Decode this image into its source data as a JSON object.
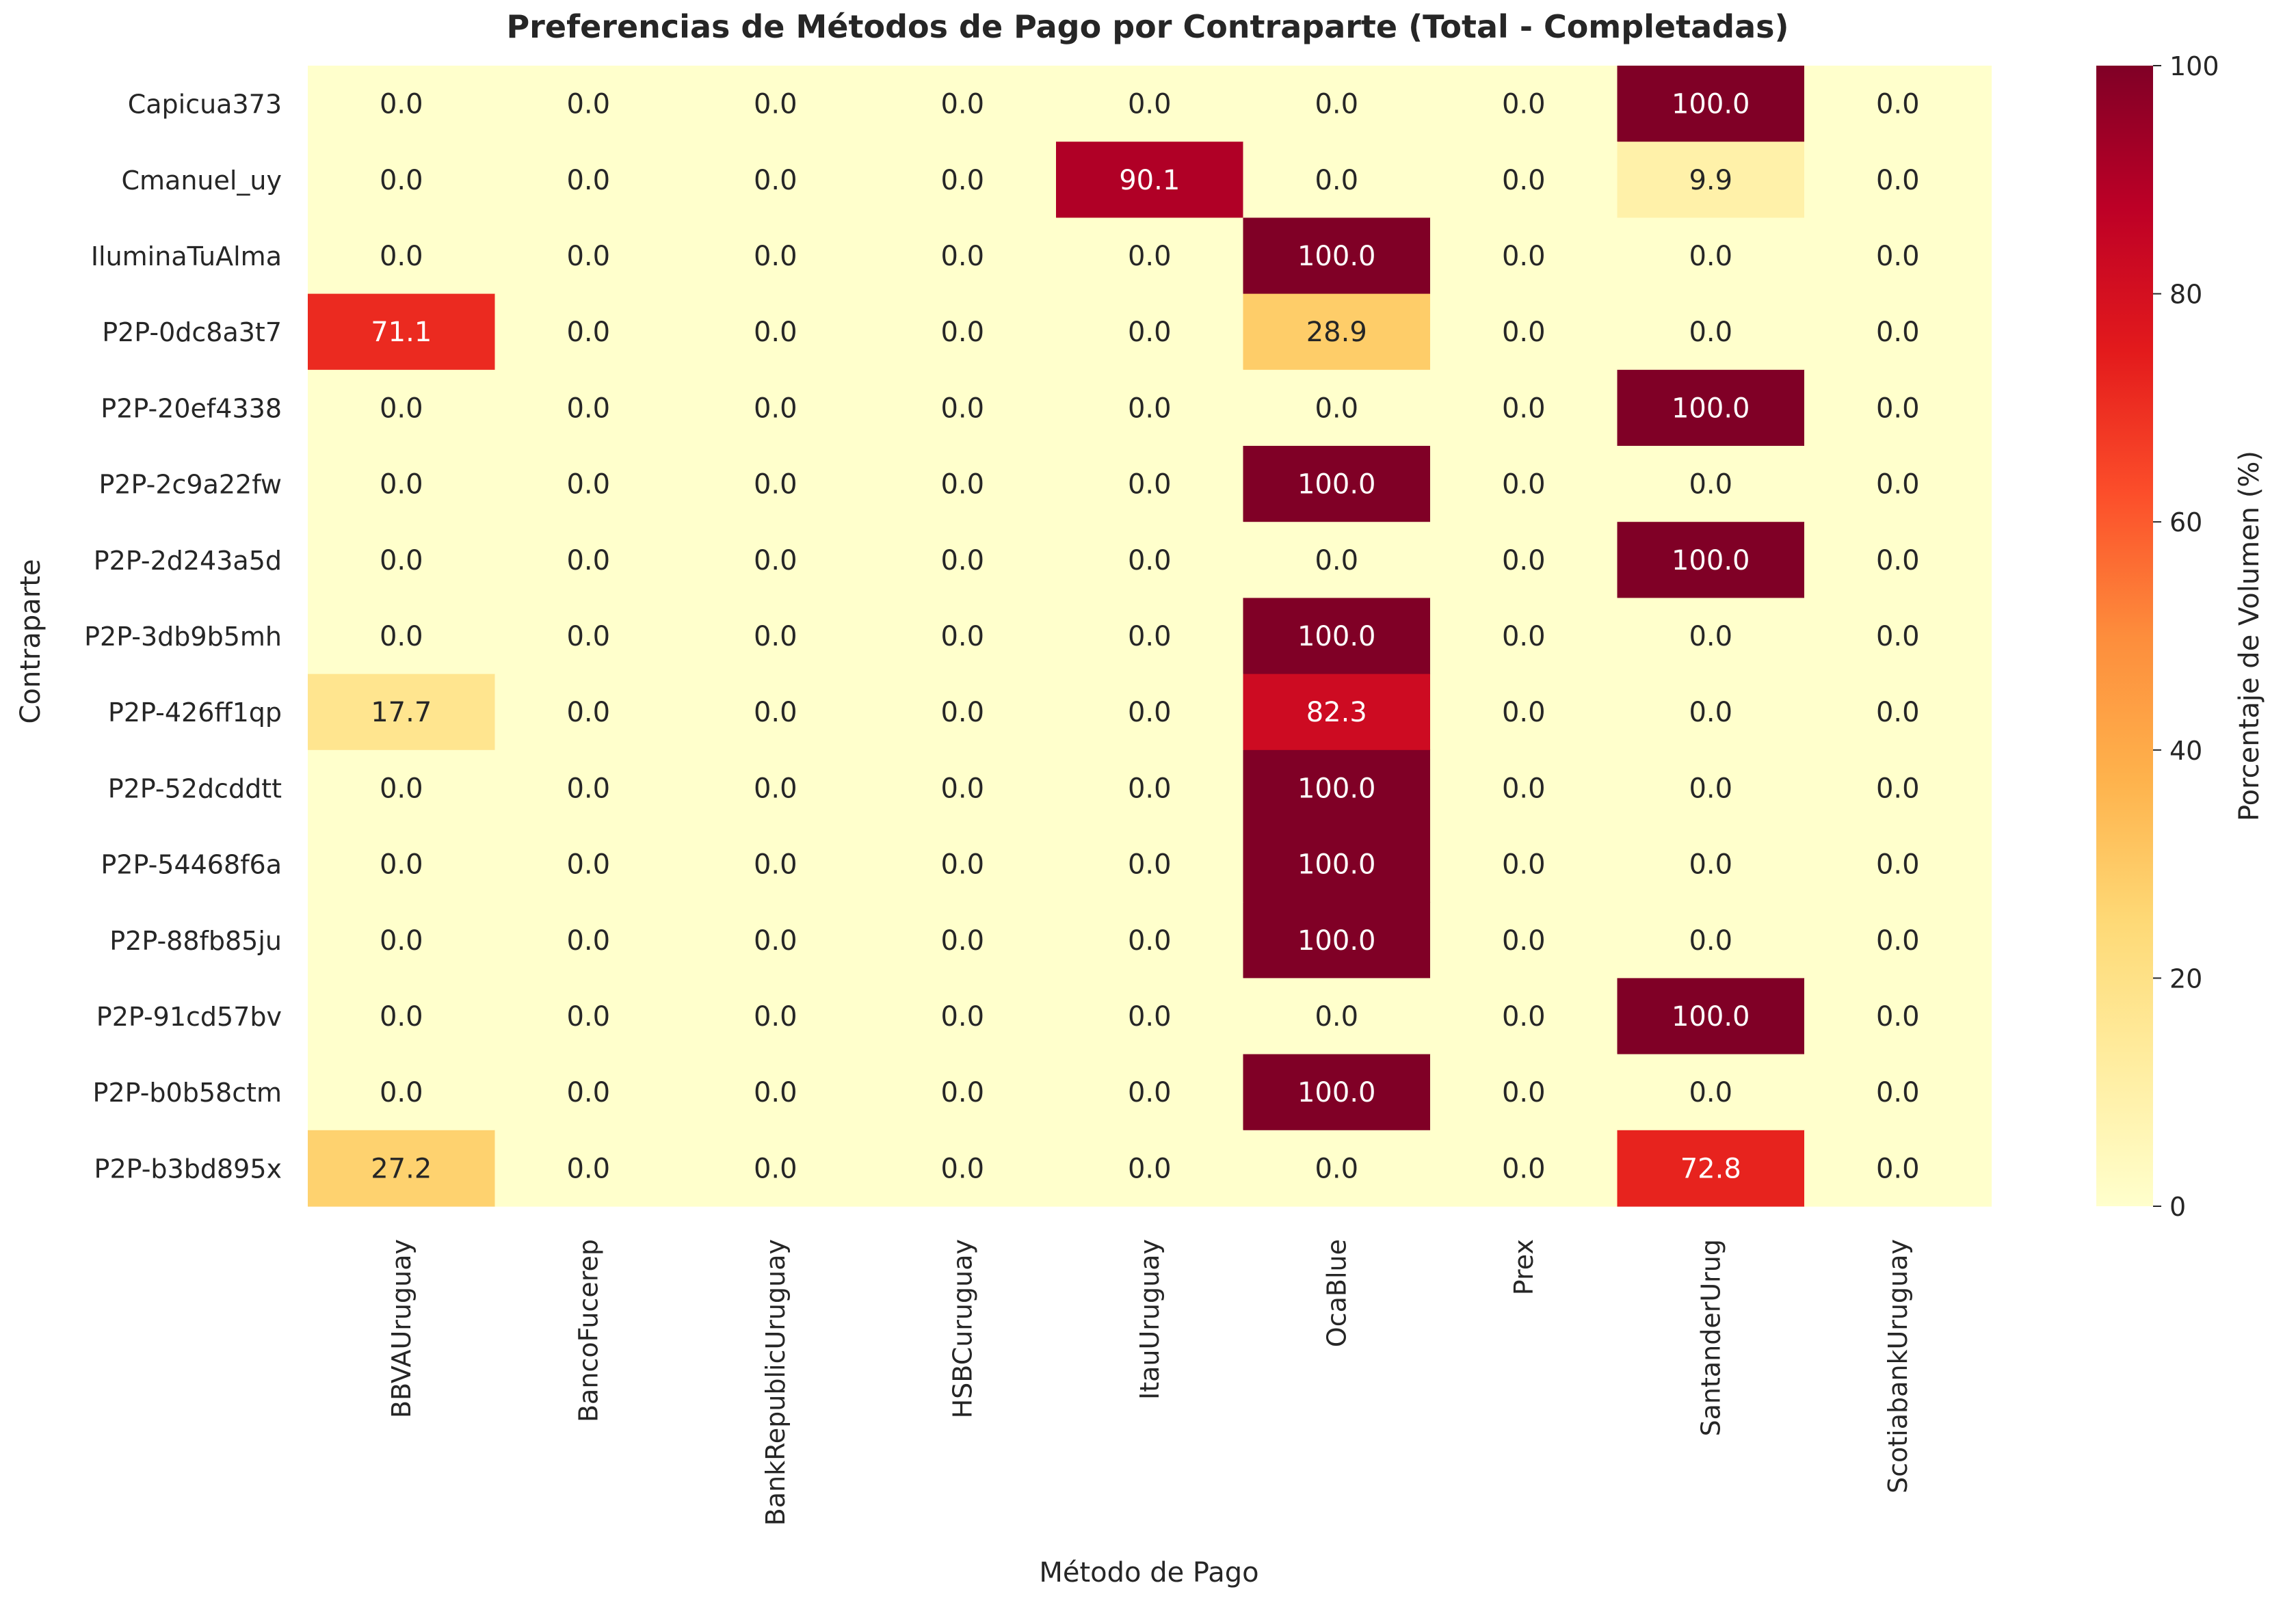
{
  "chart_data": {
    "type": "heatmap",
    "title": "Preferencias de Métodos de Pago por Contraparte (Total - Completadas)",
    "xlabel": "Método de Pago",
    "ylabel": "Contraparte",
    "x_categories": [
      "BBVAUruguay",
      "BancoFucerep",
      "BankRepublicUruguay",
      "HSBCuruguay",
      "ItauUruguay",
      "OcaBlue",
      "Prex",
      "SantanderUrug",
      "ScotiabankUruguay"
    ],
    "y_categories": [
      "Capicua373",
      "Cmanuel_uy",
      "IluminaTuAlma",
      "P2P-0dc8a3t7",
      "P2P-20ef4338",
      "P2P-2c9a22fw",
      "P2P-2d243a5d",
      "P2P-3db9b5mh",
      "P2P-426ff1qp",
      "P2P-52dcddtt",
      "P2P-54468f6a",
      "P2P-88fb85ju",
      "P2P-91cd57bv",
      "P2P-b0b58ctm",
      "P2P-b3bd895x"
    ],
    "values": [
      [
        0.0,
        0.0,
        0.0,
        0.0,
        0.0,
        0.0,
        0.0,
        100.0,
        0.0
      ],
      [
        0.0,
        0.0,
        0.0,
        0.0,
        90.1,
        0.0,
        0.0,
        9.9,
        0.0
      ],
      [
        0.0,
        0.0,
        0.0,
        0.0,
        0.0,
        100.0,
        0.0,
        0.0,
        0.0
      ],
      [
        71.1,
        0.0,
        0.0,
        0.0,
        0.0,
        28.9,
        0.0,
        0.0,
        0.0
      ],
      [
        0.0,
        0.0,
        0.0,
        0.0,
        0.0,
        0.0,
        0.0,
        100.0,
        0.0
      ],
      [
        0.0,
        0.0,
        0.0,
        0.0,
        0.0,
        100.0,
        0.0,
        0.0,
        0.0
      ],
      [
        0.0,
        0.0,
        0.0,
        0.0,
        0.0,
        0.0,
        0.0,
        100.0,
        0.0
      ],
      [
        0.0,
        0.0,
        0.0,
        0.0,
        0.0,
        100.0,
        0.0,
        0.0,
        0.0
      ],
      [
        17.7,
        0.0,
        0.0,
        0.0,
        0.0,
        82.3,
        0.0,
        0.0,
        0.0
      ],
      [
        0.0,
        0.0,
        0.0,
        0.0,
        0.0,
        100.0,
        0.0,
        0.0,
        0.0
      ],
      [
        0.0,
        0.0,
        0.0,
        0.0,
        0.0,
        100.0,
        0.0,
        0.0,
        0.0
      ],
      [
        0.0,
        0.0,
        0.0,
        0.0,
        0.0,
        100.0,
        0.0,
        0.0,
        0.0
      ],
      [
        0.0,
        0.0,
        0.0,
        0.0,
        0.0,
        0.0,
        0.0,
        100.0,
        0.0
      ],
      [
        0.0,
        0.0,
        0.0,
        0.0,
        0.0,
        100.0,
        0.0,
        0.0,
        0.0
      ],
      [
        27.2,
        0.0,
        0.0,
        0.0,
        0.0,
        0.0,
        0.0,
        72.8,
        0.0
      ]
    ],
    "value_format_decimals": 1,
    "colorbar": {
      "label": "Porcentaje de Volumen (%)",
      "range": [
        0,
        100
      ],
      "ticks": [
        0,
        20,
        40,
        60,
        80,
        100
      ],
      "colormap": "YlOrRd",
      "colormap_stops": [
        "#ffffcc",
        "#ffeda0",
        "#fed976",
        "#feb24c",
        "#fd8d3c",
        "#fc4e2a",
        "#e31a1c",
        "#bd0026",
        "#800026"
      ]
    },
    "grid": false
  }
}
